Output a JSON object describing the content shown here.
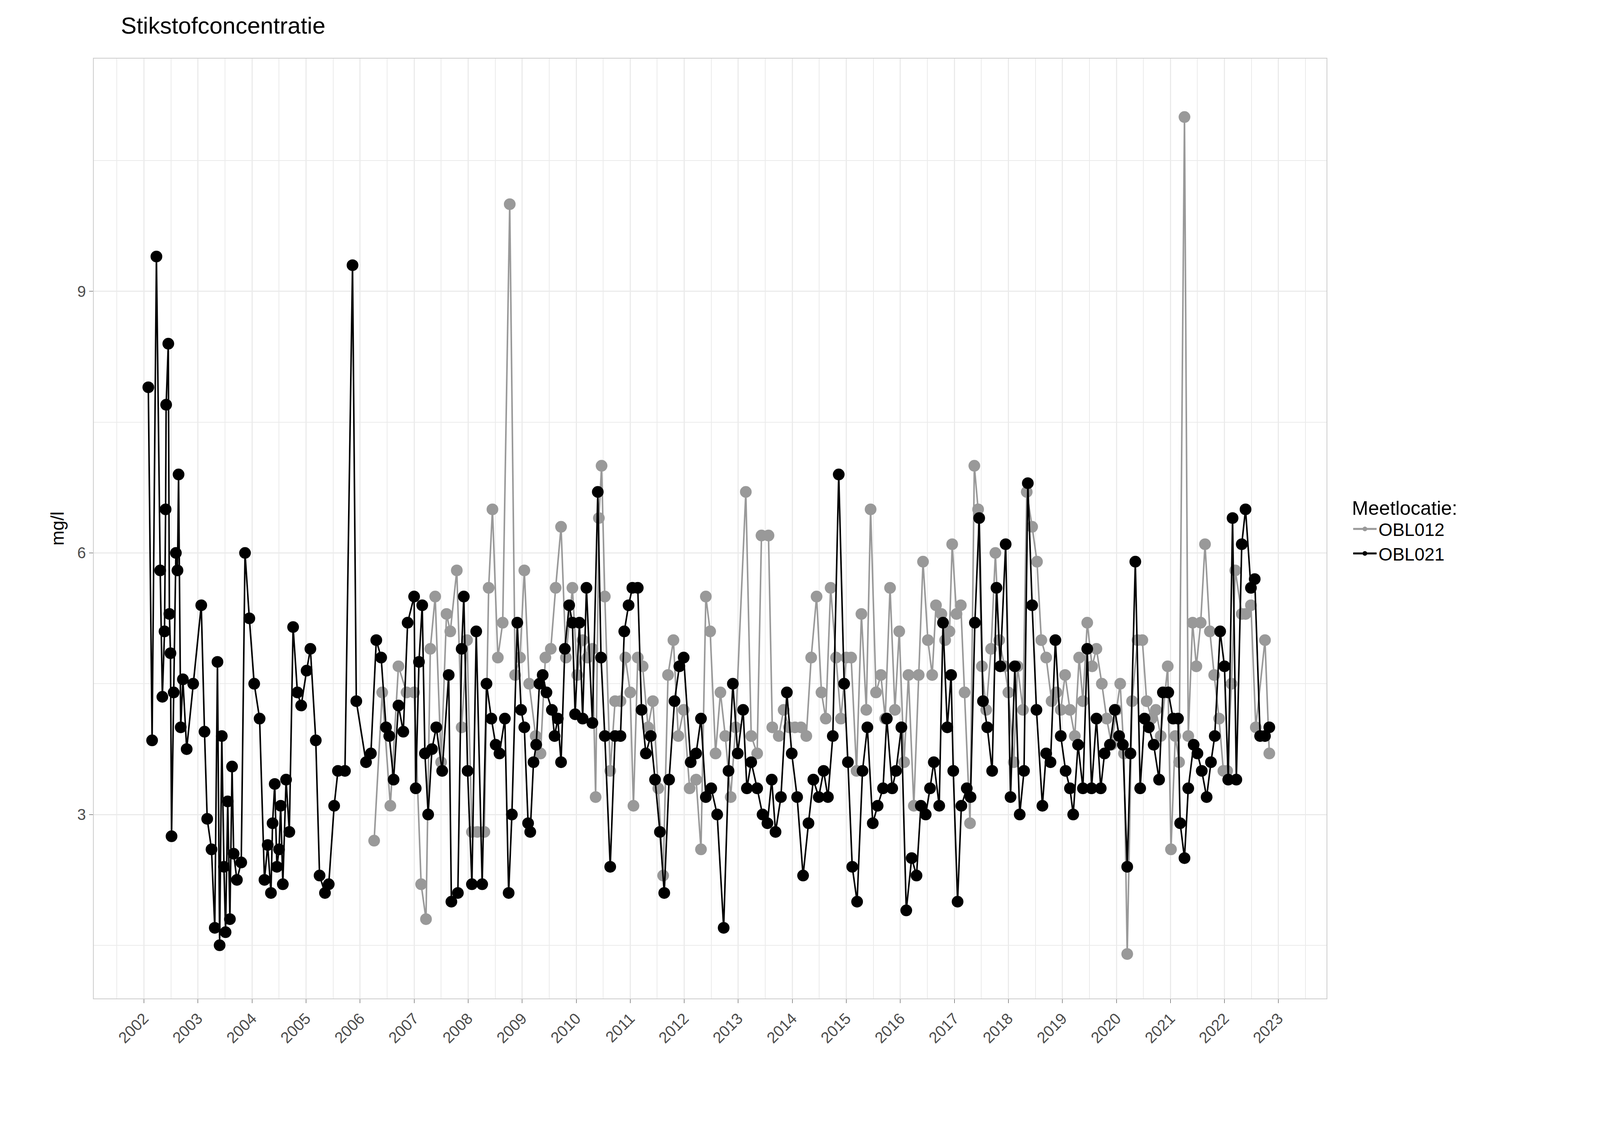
{
  "chart_data": {
    "type": "line",
    "title": "Stikstofconcentratie",
    "y_label": "mg/l",
    "legend_title": "Meetlocatie:",
    "legend": "right",
    "grid": true,
    "marker": "circle",
    "line_style": "solid",
    "xlim": [
      2001.07,
      2023.89
    ],
    "xticks": [
      2002,
      2003,
      2004,
      2005,
      2006,
      2007,
      2008,
      2009,
      2010,
      2011,
      2012,
      2013,
      2014,
      2015,
      2016,
      2017,
      2018,
      2019,
      2020,
      2021,
      2022,
      2023
    ],
    "ylim": [
      0.89,
      11.67
    ],
    "yticks": [
      3,
      6,
      9
    ],
    "series": [
      {
        "name": "OBL012",
        "color": "#999999",
        "x": [
          2006.26,
          2006.41,
          2006.56,
          2006.71,
          2006.86,
          2007.0,
          2007.13,
          2007.22,
          2007.3,
          2007.39,
          2007.5,
          2007.6,
          2007.67,
          2007.79,
          2007.88,
          2007.98,
          2008.07,
          2008.17,
          2008.3,
          2008.38,
          2008.45,
          2008.55,
          2008.64,
          2008.77,
          2008.87,
          2008.96,
          2009.04,
          2009.13,
          2009.25,
          2009.34,
          2009.43,
          2009.53,
          2009.62,
          2009.72,
          2009.81,
          2009.93,
          2010.02,
          2010.12,
          2010.21,
          2010.3,
          2010.36,
          2010.42,
          2010.47,
          2010.53,
          2010.63,
          2010.72,
          2010.82,
          2010.91,
          2011.0,
          2011.06,
          2011.14,
          2011.23,
          2011.33,
          2011.42,
          2011.52,
          2011.61,
          2011.7,
          2011.8,
          2011.89,
          2011.99,
          2012.1,
          2012.22,
          2012.31,
          2012.4,
          2012.48,
          2012.58,
          2012.67,
          2012.76,
          2012.86,
          2012.95,
          2013.14,
          2013.24,
          2013.35,
          2013.43,
          2013.56,
          2013.63,
          2013.75,
          2013.84,
          2013.94,
          2014.05,
          2014.16,
          2014.26,
          2014.35,
          2014.45,
          2014.54,
          2014.62,
          2014.71,
          2014.81,
          2014.9,
          2015.0,
          2015.09,
          2015.19,
          2015.28,
          2015.37,
          2015.45,
          2015.55,
          2015.64,
          2015.72,
          2015.81,
          2015.9,
          2015.98,
          2016.07,
          2016.15,
          2016.25,
          2016.34,
          2016.42,
          2016.51,
          2016.59,
          2016.66,
          2016.76,
          2016.83,
          2016.91,
          2016.96,
          2017.04,
          2017.12,
          2017.19,
          2017.29,
          2017.37,
          2017.44,
          2017.51,
          2017.59,
          2017.68,
          2017.76,
          2017.83,
          2017.93,
          2018.0,
          2018.1,
          2018.17,
          2018.27,
          2018.34,
          2018.44,
          2018.53,
          2018.61,
          2018.7,
          2018.8,
          2018.89,
          2018.97,
          2019.05,
          2019.14,
          2019.23,
          2019.31,
          2019.38,
          2019.46,
          2019.55,
          2019.63,
          2019.73,
          2019.82,
          2019.91,
          2020.0,
          2020.07,
          2020.14,
          2020.2,
          2020.29,
          2020.39,
          2020.48,
          2020.56,
          2020.65,
          2020.73,
          2020.82,
          2020.9,
          2020.95,
          2021.01,
          2021.09,
          2021.16,
          2021.26,
          2021.33,
          2021.41,
          2021.48,
          2021.56,
          2021.64,
          2021.73,
          2021.81,
          2021.9,
          2021.98,
          2022.05,
          2022.13,
          2022.2,
          2022.32,
          2022.39,
          2022.49,
          2022.58,
          2022.75,
          2022.83
        ],
        "values": [
          2.7,
          4.4,
          3.1,
          4.7,
          4.4,
          4.4,
          2.2,
          1.8,
          4.9,
          5.5,
          3.6,
          5.3,
          5.1,
          5.8,
          4.0,
          5.0,
          2.8,
          2.8,
          2.8,
          5.6,
          6.5,
          4.8,
          5.2,
          10.0,
          4.6,
          4.8,
          5.8,
          4.5,
          3.9,
          3.7,
          4.8,
          4.9,
          5.6,
          6.3,
          4.8,
          5.6,
          4.6,
          5.0,
          4.8,
          4.9,
          3.2,
          6.4,
          7.0,
          5.5,
          3.5,
          4.3,
          4.3,
          4.8,
          4.4,
          3.1,
          4.8,
          4.7,
          4.0,
          4.3,
          3.3,
          2.3,
          4.6,
          5.0,
          3.9,
          4.2,
          3.3,
          3.4,
          2.6,
          5.5,
          5.1,
          3.7,
          4.4,
          3.9,
          3.2,
          4.0,
          6.7,
          3.9,
          3.7,
          6.2,
          6.2,
          4.0,
          3.9,
          4.2,
          4.0,
          4.0,
          4.0,
          3.9,
          4.8,
          5.5,
          4.4,
          4.1,
          5.6,
          4.8,
          4.1,
          4.8,
          4.8,
          3.5,
          5.3,
          4.2,
          6.5,
          4.4,
          4.6,
          4.1,
          5.6,
          4.2,
          5.1,
          3.6,
          4.6,
          3.1,
          4.6,
          5.9,
          5.0,
          4.6,
          5.4,
          5.3,
          5.0,
          5.1,
          6.1,
          5.3,
          5.4,
          4.4,
          2.9,
          7.0,
          6.5,
          4.7,
          4.2,
          4.9,
          6.0,
          5.0,
          4.7,
          4.4,
          3.6,
          4.7,
          4.2,
          6.7,
          6.3,
          5.9,
          5.0,
          4.8,
          4.3,
          4.4,
          4.2,
          4.6,
          4.2,
          3.9,
          4.8,
          4.3,
          5.2,
          4.7,
          4.9,
          4.5,
          4.1,
          3.8,
          4.2,
          4.5,
          3.7,
          1.4,
          4.3,
          5.0,
          5.0,
          4.3,
          4.1,
          4.2,
          3.9,
          4.4,
          4.7,
          2.6,
          3.9,
          3.6,
          11.0,
          3.9,
          5.2,
          4.7,
          5.2,
          6.1,
          5.1,
          4.6,
          4.1,
          3.5,
          3.5,
          4.5,
          5.8,
          5.3,
          5.3,
          5.4,
          4.0,
          5.0,
          3.7
        ]
      },
      {
        "name": "OBL021",
        "color": "#000000",
        "x": [
          2002.08,
          2002.15,
          2002.23,
          2002.3,
          2002.34,
          2002.38,
          2002.4,
          2002.41,
          2002.45,
          2002.47,
          2002.49,
          2002.51,
          2002.55,
          2002.59,
          2002.62,
          2002.64,
          2002.68,
          2002.72,
          2002.79,
          2002.91,
          2003.06,
          2003.12,
          2003.17,
          2003.25,
          2003.31,
          2003.36,
          2003.4,
          2003.44,
          2003.48,
          2003.51,
          2003.55,
          2003.59,
          2003.63,
          2003.66,
          2003.72,
          2003.8,
          2003.87,
          2003.95,
          2004.04,
          2004.14,
          2004.23,
          2004.29,
          2004.35,
          2004.38,
          2004.42,
          2004.46,
          2004.5,
          2004.53,
          2004.57,
          2004.63,
          2004.69,
          2004.76,
          2004.84,
          2004.91,
          2005.01,
          2005.08,
          2005.18,
          2005.25,
          2005.35,
          2005.42,
          2005.52,
          2005.59,
          2005.72,
          2005.86,
          2005.93,
          2006.11,
          2006.2,
          2006.3,
          2006.39,
          2006.48,
          2006.54,
          2006.62,
          2006.71,
          2006.8,
          2006.88,
          2007.0,
          2007.03,
          2007.09,
          2007.15,
          2007.2,
          2007.26,
          2007.33,
          2007.41,
          2007.52,
          2007.64,
          2007.69,
          2007.81,
          2007.88,
          2007.92,
          2007.99,
          2008.07,
          2008.15,
          2008.26,
          2008.34,
          2008.43,
          2008.51,
          2008.58,
          2008.68,
          2008.75,
          2008.81,
          2008.91,
          2008.98,
          2009.04,
          2009.11,
          2009.15,
          2009.21,
          2009.26,
          2009.32,
          2009.38,
          2009.45,
          2009.55,
          2009.6,
          2009.66,
          2009.72,
          2009.79,
          2009.87,
          2009.93,
          2009.98,
          2010.06,
          2010.12,
          2010.19,
          2010.3,
          2010.4,
          2010.46,
          2010.53,
          2010.63,
          2010.72,
          2010.82,
          2010.89,
          2010.97,
          2011.04,
          2011.14,
          2011.21,
          2011.29,
          2011.38,
          2011.46,
          2011.55,
          2011.63,
          2011.72,
          2011.82,
          2011.91,
          2011.99,
          2012.12,
          2012.22,
          2012.31,
          2012.4,
          2012.5,
          2012.61,
          2012.73,
          2012.82,
          2012.9,
          2012.99,
          2013.09,
          2013.16,
          2013.24,
          2013.35,
          2013.45,
          2013.54,
          2013.62,
          2013.69,
          2013.79,
          2013.9,
          2013.99,
          2014.09,
          2014.2,
          2014.3,
          2014.39,
          2014.49,
          2014.58,
          2014.66,
          2014.75,
          2014.86,
          2014.96,
          2015.03,
          2015.11,
          2015.2,
          2015.3,
          2015.39,
          2015.49,
          2015.58,
          2015.68,
          2015.75,
          2015.85,
          2015.92,
          2016.02,
          2016.11,
          2016.21,
          2016.3,
          2016.38,
          2016.47,
          2016.55,
          2016.62,
          2016.72,
          2016.79,
          2016.87,
          2016.94,
          2016.98,
          2017.06,
          2017.13,
          2017.23,
          2017.3,
          2017.38,
          2017.46,
          2017.53,
          2017.61,
          2017.7,
          2017.78,
          2017.85,
          2017.95,
          2018.04,
          2018.12,
          2018.21,
          2018.29,
          2018.36,
          2018.44,
          2018.52,
          2018.63,
          2018.7,
          2018.78,
          2018.87,
          2018.97,
          2019.06,
          2019.14,
          2019.2,
          2019.29,
          2019.38,
          2019.46,
          2019.54,
          2019.63,
          2019.71,
          2019.78,
          2019.88,
          2019.97,
          2020.05,
          2020.12,
          2020.2,
          2020.26,
          2020.35,
          2020.44,
          2020.52,
          2020.6,
          2020.69,
          2020.79,
          2020.86,
          2020.96,
          2021.05,
          2021.14,
          2021.18,
          2021.26,
          2021.33,
          2021.43,
          2021.5,
          2021.58,
          2021.67,
          2021.75,
          2021.82,
          2021.92,
          2022.0,
          2022.07,
          2022.15,
          2022.22,
          2022.32,
          2022.39,
          2022.49,
          2022.56,
          2022.66,
          2022.75,
          2022.83
        ],
        "values": [
          7.9,
          3.85,
          9.4,
          5.8,
          4.35,
          5.1,
          6.5,
          7.7,
          8.4,
          5.3,
          4.85,
          2.75,
          4.4,
          6.0,
          5.8,
          6.9,
          4.0,
          4.55,
          3.75,
          4.5,
          5.4,
          3.95,
          2.95,
          2.6,
          1.7,
          4.75,
          1.5,
          3.9,
          2.4,
          1.65,
          3.15,
          1.8,
          3.55,
          2.55,
          2.25,
          2.45,
          6.0,
          5.25,
          4.5,
          4.1,
          2.25,
          2.65,
          2.1,
          2.9,
          3.35,
          2.4,
          2.6,
          3.1,
          2.2,
          3.4,
          2.8,
          5.15,
          4.4,
          4.25,
          4.65,
          4.9,
          3.85,
          2.3,
          2.1,
          2.2,
          3.1,
          3.5,
          3.5,
          9.3,
          4.3,
          3.6,
          3.7,
          5.0,
          4.8,
          4.0,
          3.9,
          3.4,
          4.25,
          3.95,
          5.2,
          5.5,
          3.3,
          4.75,
          5.4,
          3.7,
          3.0,
          3.75,
          4.0,
          3.5,
          4.6,
          2.0,
          2.1,
          4.9,
          5.5,
          3.5,
          2.2,
          5.1,
          2.2,
          4.5,
          4.1,
          3.8,
          3.7,
          4.1,
          2.1,
          3.0,
          5.2,
          4.2,
          4.0,
          2.9,
          2.8,
          3.6,
          3.8,
          4.5,
          4.6,
          4.4,
          4.2,
          3.9,
          4.1,
          3.6,
          4.9,
          5.4,
          5.2,
          4.15,
          5.2,
          4.1,
          5.6,
          4.05,
          6.7,
          4.8,
          3.9,
          2.4,
          3.9,
          3.9,
          5.1,
          5.4,
          5.6,
          5.6,
          4.2,
          3.7,
          3.9,
          3.4,
          2.8,
          2.1,
          3.4,
          4.3,
          4.7,
          4.8,
          3.6,
          3.7,
          4.1,
          3.2,
          3.3,
          3.0,
          1.7,
          3.5,
          4.5,
          3.7,
          4.2,
          3.3,
          3.6,
          3.3,
          3.0,
          2.9,
          3.4,
          2.8,
          3.2,
          4.4,
          3.7,
          3.2,
          2.3,
          2.9,
          3.4,
          3.2,
          3.5,
          3.2,
          3.9,
          6.9,
          4.5,
          3.6,
          2.4,
          2.0,
          3.5,
          4.0,
          2.9,
          3.1,
          3.3,
          4.1,
          3.3,
          3.5,
          4.0,
          1.9,
          2.5,
          2.3,
          3.1,
          3.0,
          3.3,
          3.6,
          3.1,
          5.2,
          4.0,
          4.6,
          3.5,
          2.0,
          3.1,
          3.3,
          3.2,
          5.2,
          6.4,
          4.3,
          4.0,
          3.5,
          5.6,
          4.7,
          6.1,
          3.2,
          4.7,
          3.0,
          3.5,
          6.8,
          5.4,
          4.2,
          3.1,
          3.7,
          3.6,
          5.0,
          3.9,
          3.5,
          3.3,
          3.0,
          3.8,
          3.3,
          4.9,
          3.3,
          4.1,
          3.3,
          3.7,
          3.8,
          4.2,
          3.9,
          3.8,
          2.4,
          3.7,
          5.9,
          3.3,
          4.1,
          4.0,
          3.8,
          3.4,
          4.4,
          4.4,
          4.1,
          4.1,
          2.9,
          2.5,
          3.3,
          3.8,
          3.7,
          3.5,
          3.2,
          3.6,
          3.9,
          5.1,
          4.7,
          3.4,
          6.4,
          3.4,
          6.1,
          6.5,
          5.6,
          5.7,
          3.9,
          3.9,
          4.0
        ]
      }
    ]
  }
}
